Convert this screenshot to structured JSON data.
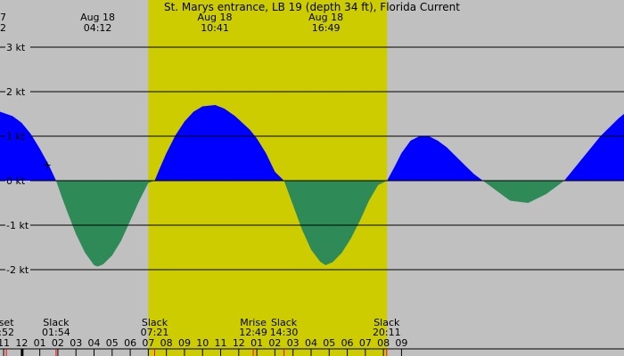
{
  "chart_data": {
    "type": "area",
    "title": "St. Marys entrance, LB 19 (depth 34 ft), Florida Current",
    "xlabel": "",
    "ylabel": "",
    "x_unit": "hours of day (Aug 18, continuous)",
    "xlim": [
      -1.2,
      33.3
    ],
    "ylim": [
      -3.0,
      3.0
    ],
    "y_ticks": [
      3,
      2,
      1,
      0,
      -1,
      -2
    ],
    "y_tick_labels": [
      "3 kt",
      "2 kt",
      "1 kt",
      "0 kt",
      "-1 kt",
      "-2 kt"
    ],
    "grid": true,
    "daylight": {
      "start": 7.0,
      "end": 20.2
    },
    "series": [
      {
        "x": [
          -1.2,
          -0.5,
          0.0,
          0.5,
          1.0,
          1.5,
          1.9,
          2.2,
          2.5,
          3.0,
          3.5,
          4.0,
          4.2,
          4.5,
          5.0,
          5.5,
          6.0,
          6.5,
          7.0,
          7.35,
          7.6,
          8.0,
          8.5,
          9.0,
          9.5,
          10.0,
          10.7,
          11.2,
          11.8,
          12.2,
          12.6,
          13.0,
          13.5,
          14.0,
          14.5,
          15.0,
          15.5,
          16.0,
          16.5,
          16.8,
          17.2,
          17.7,
          18.2,
          18.7,
          19.2,
          19.7,
          20.2,
          20.6,
          21.0,
          21.5,
          22.0,
          22.5,
          23.0,
          23.5,
          24.0,
          24.5,
          25.0,
          26.0,
          27.0,
          28.0,
          29.0,
          30.0,
          31.0,
          32.0,
          33.0,
          33.3
        ],
        "values": [
          1.55,
          1.45,
          1.3,
          1.05,
          0.72,
          0.35,
          0.0,
          -0.35,
          -0.68,
          -1.2,
          -1.62,
          -1.9,
          -1.93,
          -1.88,
          -1.68,
          -1.35,
          -0.9,
          -0.45,
          -0.05,
          0.0,
          0.25,
          0.62,
          1.02,
          1.33,
          1.55,
          1.67,
          1.7,
          1.62,
          1.45,
          1.3,
          1.15,
          0.95,
          0.62,
          0.2,
          0.0,
          -0.55,
          -1.1,
          -1.55,
          -1.82,
          -1.9,
          -1.83,
          -1.62,
          -1.3,
          -0.9,
          -0.45,
          -0.1,
          0.0,
          0.3,
          0.62,
          0.9,
          1.0,
          1.0,
          0.9,
          0.75,
          0.55,
          0.35,
          0.15,
          -0.15,
          -0.45,
          -0.5,
          -0.3,
          0.0,
          0.5,
          1.0,
          1.4,
          1.5
        ]
      }
    ],
    "marker": {
      "x": 1.4,
      "y": 0.35,
      "symbol": "+"
    }
  },
  "extremes": [
    {
      "date": "Aug 18",
      "time": "04:12",
      "x": 4.2
    },
    {
      "date": "Aug 18",
      "time": "10:41",
      "x": 10.68
    },
    {
      "date": "Aug 18",
      "time": "16:49",
      "x": 16.82
    }
  ],
  "left_partial_label": {
    "line1": "7",
    "line2": "2"
  },
  "events": [
    {
      "name": "set",
      "time": ":52",
      "x": -0.85
    },
    {
      "name": "Slack",
      "time": "01:54",
      "x": 1.9
    },
    {
      "name": "Slack",
      "time": "07:21",
      "x": 7.35
    },
    {
      "name": "Mrise",
      "time": "12:49",
      "x": 12.8
    },
    {
      "name": "Slack",
      "time": "14:30",
      "x": 14.5
    },
    {
      "name": "Slack",
      "time": "20:11",
      "x": 20.18
    }
  ],
  "hour_labels": [
    "11",
    "12",
    "01",
    "02",
    "03",
    "04",
    "05",
    "06",
    "07",
    "08",
    "09",
    "10",
    "11",
    "12",
    "01",
    "02",
    "03",
    "04",
    "05",
    "06",
    "07",
    "08",
    "09"
  ],
  "colors": {
    "night": "#c0c0c0",
    "day": "#cccc00",
    "flood": "#0000ff",
    "ebb": "#2e8b57",
    "grid": "#000000",
    "tick_red": "#ff0000"
  }
}
